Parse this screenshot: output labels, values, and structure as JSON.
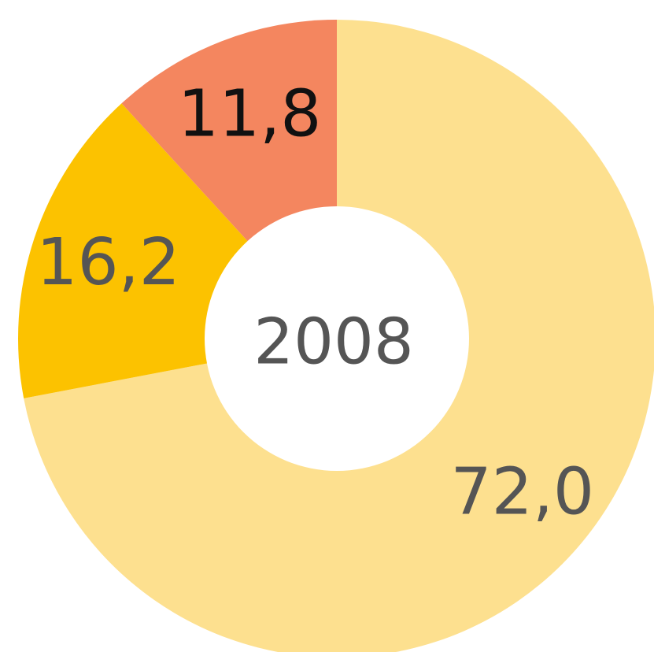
{
  "chart_data": {
    "type": "pie",
    "variant": "donut",
    "center_label": "2008",
    "slices": [
      {
        "label": "72,0",
        "value": 72.0,
        "color": "#fde08f",
        "label_color": "#555555"
      },
      {
        "label": "16,2",
        "value": 16.2,
        "color": "#fcc200",
        "label_color": "#555555"
      },
      {
        "label": "11,8",
        "value": 11.8,
        "color": "#f4865f",
        "label_color": "#111111"
      }
    ],
    "start_angle": "12 o'clock",
    "direction": "clockwise"
  }
}
